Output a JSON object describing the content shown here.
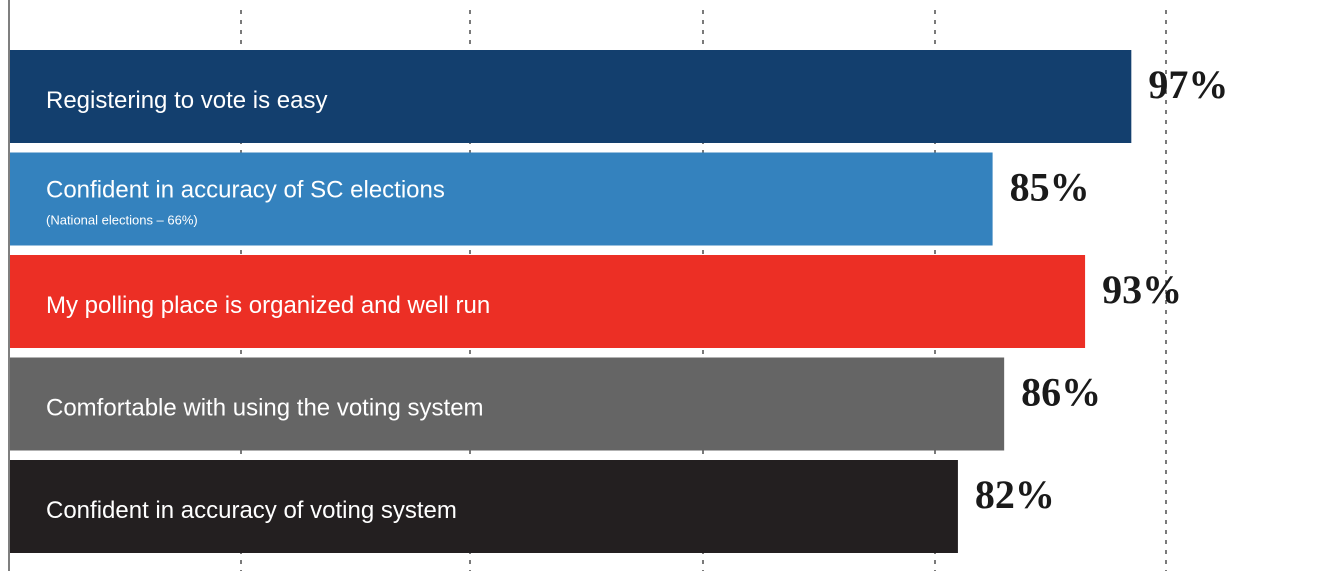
{
  "chart_data": {
    "type": "bar",
    "orientation": "horizontal",
    "categories": [
      "Registering to vote is easy",
      "Confident in accuracy of SC elections",
      "My polling place is organized and well run",
      "Comfortable with using the voting system",
      "Confident in accuracy of voting system"
    ],
    "sublabels": [
      "",
      "(National elections – 66%)",
      "",
      "",
      ""
    ],
    "values": [
      97,
      85,
      93,
      86,
      82
    ],
    "value_labels": [
      "97%",
      "85%",
      "93%",
      "86%",
      "82%"
    ],
    "colors": [
      "#133f6e",
      "#3482be",
      "#ec2f25",
      "#656565",
      "#231f20"
    ],
    "unit": "%",
    "title": "",
    "xlabel": "",
    "ylabel": "",
    "grid": "vertical dashed",
    "legend": "none"
  }
}
